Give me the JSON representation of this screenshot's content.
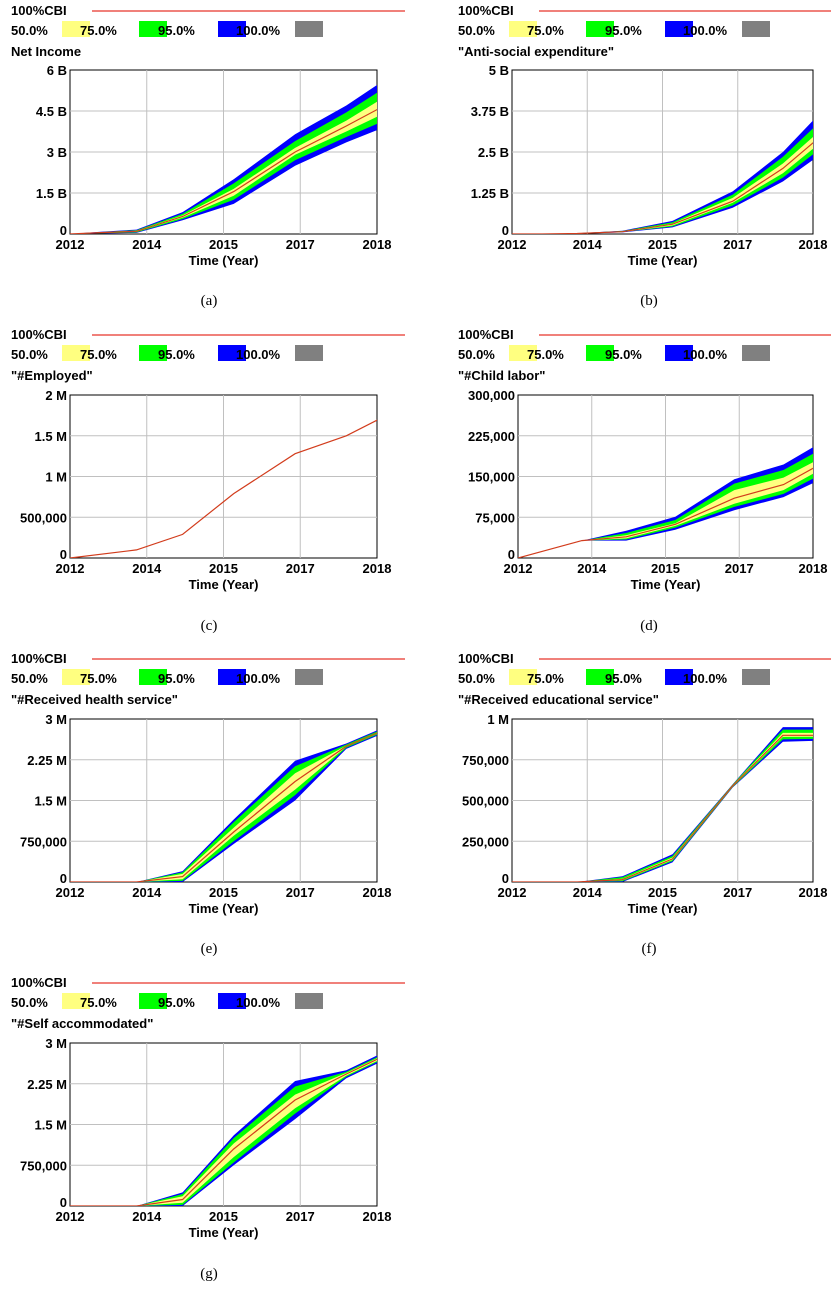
{
  "legend": {
    "cbi_label": "100%CBI",
    "cbi_color": "#e8342a",
    "bands": [
      {
        "label": "50.0%",
        "color": "#ffff80"
      },
      {
        "label": "75.0%",
        "color": "#00ff00"
      },
      {
        "label": "95.0%",
        "color": "#0000ff"
      },
      {
        "label": "100.0%",
        "color": "#808080"
      }
    ]
  },
  "colors": {
    "median_line": "#d23c1c",
    "grid": "#c0c0c0"
  },
  "x_axis_title": "Time (Year)",
  "chart_data": [
    {
      "type": "area",
      "caption": "(a)",
      "title": "Net Income",
      "xlabel": "Time (Year)",
      "x_ticks": [
        "2012",
        "2014",
        "2015",
        "2017",
        "2018"
      ],
      "y_ticks": [
        "0",
        "1.5 B",
        "3 B",
        "4.5 B",
        "6 B"
      ],
      "xlim": [
        2012,
        2018
      ],
      "ylim": [
        0,
        6
      ],
      "x": [
        2012,
        2012.6,
        2013.3,
        2014.2,
        2015.2,
        2016.4,
        2017.4,
        2018.4
      ],
      "band_outer": {
        "upper": [
          0,
          0.08,
          0.16,
          0.8,
          2.0,
          3.65,
          4.7,
          5.95
        ],
        "lower": [
          0,
          0.02,
          0.04,
          0.5,
          1.1,
          2.5,
          3.35,
          4.1
        ]
      },
      "band_mid": {
        "upper": [
          0,
          0.07,
          0.14,
          0.74,
          1.85,
          3.4,
          4.45,
          5.65
        ],
        "lower": [
          0,
          0.03,
          0.06,
          0.55,
          1.25,
          2.7,
          3.55,
          4.35
        ]
      },
      "band_inner": {
        "upper": [
          0,
          0.06,
          0.12,
          0.68,
          1.65,
          3.15,
          4.15,
          5.3
        ],
        "lower": [
          0,
          0.04,
          0.08,
          0.6,
          1.4,
          2.9,
          3.75,
          4.65
        ]
      },
      "median": [
        0,
        0.05,
        0.1,
        0.64,
        1.55,
        3.0,
        3.95,
        4.95
      ]
    },
    {
      "type": "area",
      "caption": "(b)",
      "title": "\"Anti-social expenditure\"",
      "xlabel": "Time (Year)",
      "x_ticks": [
        "2012",
        "2014",
        "2015",
        "2017",
        "2018"
      ],
      "y_ticks": [
        "0",
        "1.25 B",
        "2.5 B",
        "3.75 B",
        "5 B"
      ],
      "xlim": [
        2012,
        2018
      ],
      "ylim": [
        0,
        5
      ],
      "x": [
        2012,
        2012.6,
        2013.3,
        2014.2,
        2015.2,
        2016.4,
        2017.4,
        2018.4
      ],
      "band_outer": {
        "upper": [
          0,
          0,
          0.02,
          0.1,
          0.4,
          1.3,
          2.5,
          4.1
        ],
        "lower": [
          0,
          0,
          0.01,
          0.05,
          0.2,
          0.8,
          1.6,
          2.7
        ]
      },
      "band_mid": {
        "upper": [
          0,
          0,
          0.02,
          0.09,
          0.36,
          1.2,
          2.35,
          3.8
        ],
        "lower": [
          0,
          0,
          0.01,
          0.06,
          0.23,
          0.87,
          1.72,
          2.9
        ]
      },
      "band_inner": {
        "upper": [
          0,
          0,
          0.02,
          0.08,
          0.32,
          1.1,
          2.15,
          3.5
        ],
        "lower": [
          0,
          0,
          0.01,
          0.06,
          0.26,
          0.95,
          1.85,
          3.1
        ]
      },
      "median": [
        0,
        0,
        0.015,
        0.07,
        0.3,
        1.0,
        2.0,
        3.3
      ]
    },
    {
      "type": "line",
      "caption": "(c)",
      "title": "\"#Employed\"",
      "xlabel": "Time (Year)",
      "x_ticks": [
        "2012",
        "2014",
        "2015",
        "2017",
        "2018"
      ],
      "y_ticks": [
        "0",
        "500,000",
        "1 M",
        "1.5 M",
        "2 M"
      ],
      "xlim": [
        2012,
        2018
      ],
      "ylim": [
        0,
        2000000
      ],
      "x": [
        2012,
        2013.3,
        2014.2,
        2015.2,
        2016.4,
        2017.4,
        2018.4
      ],
      "median": [
        0,
        100000,
        290000,
        790000,
        1280000,
        1500000,
        1820000
      ]
    },
    {
      "type": "area",
      "caption": "(d)",
      "title": "\"#Child labor\"",
      "xlabel": "Time (Year)",
      "x_ticks": [
        "2012",
        "2014",
        "2015",
        "2017",
        "2018"
      ],
      "y_ticks": [
        "0",
        "75,000",
        "150,000",
        "225,000",
        "300,000"
      ],
      "xlim": [
        2012,
        2018
      ],
      "ylim": [
        0,
        300000
      ],
      "x": [
        2012,
        2012.6,
        2013.3,
        2014.2,
        2015.2,
        2016.4,
        2017.4,
        2018.4
      ],
      "band_outer": {
        "upper": [
          0,
          15000,
          32000,
          50000,
          76000,
          145000,
          172000,
          225000
        ],
        "lower": [
          0,
          15000,
          32000,
          32000,
          52000,
          88000,
          112000,
          155000
        ]
      },
      "band_mid": {
        "upper": [
          0,
          15000,
          32000,
          46000,
          70000,
          137000,
          162000,
          212000
        ],
        "lower": [
          0,
          15000,
          32000,
          34000,
          56000,
          94000,
          118000,
          165000
        ]
      },
      "band_inner": {
        "upper": [
          0,
          15000,
          32000,
          42000,
          64000,
          125000,
          148000,
          195000
        ],
        "lower": [
          0,
          15000,
          32000,
          36000,
          59000,
          100000,
          125000,
          175000
        ]
      },
      "median": [
        0,
        15000,
        32000,
        39000,
        62000,
        110000,
        135000,
        185000
      ]
    },
    {
      "type": "area",
      "caption": "(e)",
      "title": "\"#Received health service\"",
      "xlabel": "Time (Year)",
      "x_ticks": [
        "2012",
        "2014",
        "2015",
        "2017",
        "2018"
      ],
      "y_ticks": [
        "0",
        "750,000",
        "1.5 M",
        "2.25 M",
        "3 M"
      ],
      "xlim": [
        2012,
        2018
      ],
      "ylim": [
        0,
        3000000
      ],
      "x": [
        2012,
        2012.6,
        2013.3,
        2014.2,
        2015.2,
        2016.4,
        2017.4,
        2018.4
      ],
      "band_outer": {
        "upper": [
          0,
          0,
          0,
          200000,
          1150000,
          2230000,
          2550000,
          2950000
        ],
        "lower": [
          0,
          0,
          0,
          0,
          700000,
          1500000,
          2450000,
          2850000
        ]
      },
      "band_mid": {
        "upper": [
          0,
          0,
          0,
          180000,
          1100000,
          2130000,
          2530000,
          2930000
        ],
        "lower": [
          0,
          0,
          0,
          20000,
          750000,
          1600000,
          2470000,
          2870000
        ]
      },
      "band_inner": {
        "upper": [
          0,
          0,
          0,
          150000,
          1000000,
          2000000,
          2510000,
          2910000
        ],
        "lower": [
          0,
          0,
          0,
          50000,
          850000,
          1700000,
          2490000,
          2890000
        ]
      },
      "median": [
        0,
        0,
        0,
        100000,
        920000,
        1850000,
        2500000,
        2900000
      ]
    },
    {
      "type": "area",
      "caption": "(f)",
      "title": "\"#Received educational service\"",
      "xlabel": "Time (Year)",
      "x_ticks": [
        "2012",
        "2014",
        "2015",
        "2017",
        "2018"
      ],
      "y_ticks": [
        "0",
        "250,000",
        "500,000",
        "750,000",
        "1 M"
      ],
      "xlim": [
        2012,
        2018
      ],
      "ylim": [
        0,
        1000000
      ],
      "x": [
        2012,
        2012.6,
        2013.3,
        2014.2,
        2015.2,
        2016.4,
        2017.4,
        2018.4
      ],
      "band_outer": {
        "upper": [
          0,
          0,
          0,
          35000,
          170000,
          600000,
          950000,
          950000
        ],
        "lower": [
          0,
          0,
          0,
          0,
          120000,
          580000,
          860000,
          870000
        ]
      },
      "band_mid": {
        "upper": [
          0,
          0,
          0,
          30000,
          160000,
          598000,
          935000,
          935000
        ],
        "lower": [
          0,
          0,
          0,
          5000,
          128000,
          582000,
          875000,
          880000
        ]
      },
      "band_inner": {
        "upper": [
          0,
          0,
          0,
          20000,
          150000,
          595000,
          915000,
          915000
        ],
        "lower": [
          0,
          0,
          0,
          10000,
          135000,
          585000,
          890000,
          892000
        ]
      },
      "median": [
        0,
        0,
        0,
        15000,
        142000,
        590000,
        900000,
        900000
      ]
    },
    {
      "type": "area",
      "caption": "(g)",
      "title": "\"#Self accommodated\"",
      "xlabel": "Time (Year)",
      "x_ticks": [
        "2012",
        "2014",
        "2015",
        "2017",
        "2018"
      ],
      "y_ticks": [
        "0",
        "750,000",
        "1.5 M",
        "2.25 M",
        "3 M"
      ],
      "xlim": [
        2012,
        2018
      ],
      "ylim": [
        0,
        3000000
      ],
      "x": [
        2012,
        2012.6,
        2013.3,
        2014.2,
        2015.2,
        2016.4,
        2017.4,
        2018.4
      ],
      "band_outer": {
        "upper": [
          0,
          0,
          0,
          250000,
          1300000,
          2300000,
          2500000,
          2950000
        ],
        "lower": [
          0,
          0,
          0,
          0,
          750000,
          1600000,
          2350000,
          2800000
        ]
      },
      "band_mid": {
        "upper": [
          0,
          0,
          0,
          220000,
          1250000,
          2200000,
          2470000,
          2920000
        ],
        "lower": [
          0,
          0,
          0,
          20000,
          800000,
          1700000,
          2380000,
          2830000
        ]
      },
      "band_inner": {
        "upper": [
          0,
          0,
          0,
          180000,
          1150000,
          2050000,
          2450000,
          2900000
        ],
        "lower": [
          0,
          0,
          0,
          60000,
          900000,
          1800000,
          2400000,
          2850000
        ]
      },
      "median": [
        0,
        0,
        0,
        120000,
        1050000,
        1950000,
        2430000,
        2880000
      ]
    }
  ]
}
